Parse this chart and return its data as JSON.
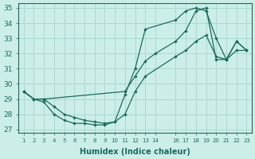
{
  "xlabel": "Humidex (Indice chaleur)",
  "bg_color": "#cceee8",
  "grid_color": "#aad8d0",
  "line_color": "#1a6b60",
  "xlim": [
    0.5,
    23.5
  ],
  "ylim": [
    26.8,
    35.3
  ],
  "yticks": [
    27,
    28,
    29,
    30,
    31,
    32,
    33,
    34,
    35
  ],
  "xticks": [
    1,
    2,
    3,
    4,
    5,
    6,
    7,
    8,
    9,
    10,
    11,
    12,
    13,
    14,
    16,
    17,
    18,
    19,
    20,
    21,
    22,
    23
  ],
  "line1_x": [
    1,
    2,
    3,
    4,
    5,
    6,
    7,
    8,
    9,
    10,
    11,
    12,
    13,
    16,
    17,
    18,
    19,
    20,
    21,
    22,
    23
  ],
  "line1_y": [
    29.5,
    29.0,
    28.8,
    28.0,
    27.6,
    27.4,
    27.4,
    27.3,
    27.3,
    27.5,
    29.3,
    31.0,
    33.6,
    34.2,
    34.8,
    35.0,
    34.8,
    33.0,
    31.6,
    32.8,
    32.2
  ],
  "line2_x": [
    1,
    2,
    3,
    11,
    12,
    13,
    14,
    16,
    17,
    18,
    19,
    20,
    21,
    22,
    23
  ],
  "line2_y": [
    29.5,
    29.0,
    29.0,
    29.5,
    30.5,
    31.5,
    32.0,
    32.8,
    33.5,
    34.8,
    35.0,
    31.6,
    31.6,
    32.8,
    32.2
  ],
  "line3_x": [
    1,
    2,
    3,
    4,
    5,
    6,
    7,
    8,
    9,
    10,
    11,
    12,
    13,
    16,
    17,
    18,
    19,
    20,
    21,
    22,
    23
  ],
  "line3_y": [
    29.5,
    29.0,
    29.0,
    28.5,
    28.0,
    27.8,
    27.6,
    27.5,
    27.4,
    27.5,
    28.0,
    29.5,
    30.5,
    31.8,
    32.2,
    32.8,
    33.2,
    31.8,
    31.6,
    32.2,
    32.2
  ]
}
